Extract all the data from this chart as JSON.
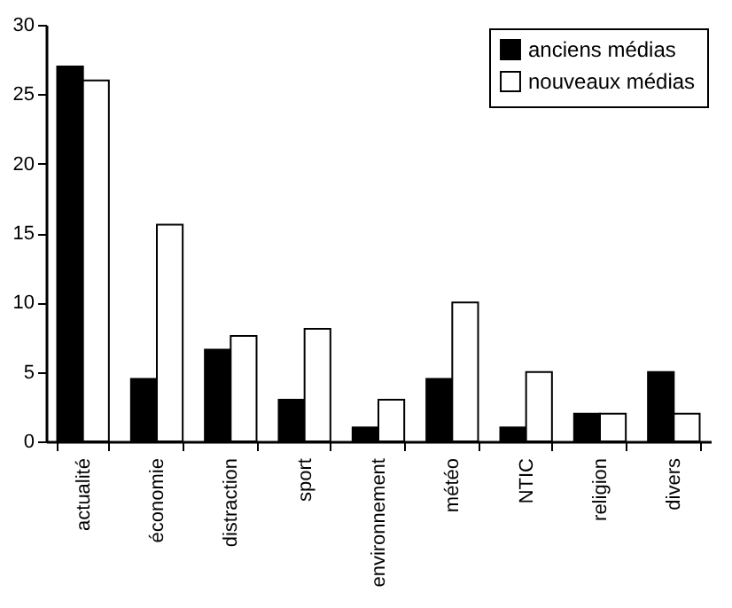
{
  "chart_data": {
    "type": "bar",
    "categories": [
      "actualité",
      "économie",
      "distraction",
      "sport",
      "environnement",
      "météo",
      "NTIC",
      "religion",
      "divers"
    ],
    "series": [
      {
        "name": "anciens médias",
        "color": "#000000",
        "values": [
          27,
          4.5,
          6.6,
          3,
          1,
          4.5,
          1,
          2,
          5
        ]
      },
      {
        "name": "nouveaux médias",
        "color": "#ffffff",
        "values": [
          26,
          15.6,
          7.6,
          8.1,
          3,
          10,
          5,
          2,
          2
        ]
      }
    ],
    "ylim": [
      0,
      30
    ],
    "yticks": [
      0,
      5,
      10,
      15,
      20,
      25,
      30
    ],
    "grid": false,
    "legend": "top right"
  }
}
